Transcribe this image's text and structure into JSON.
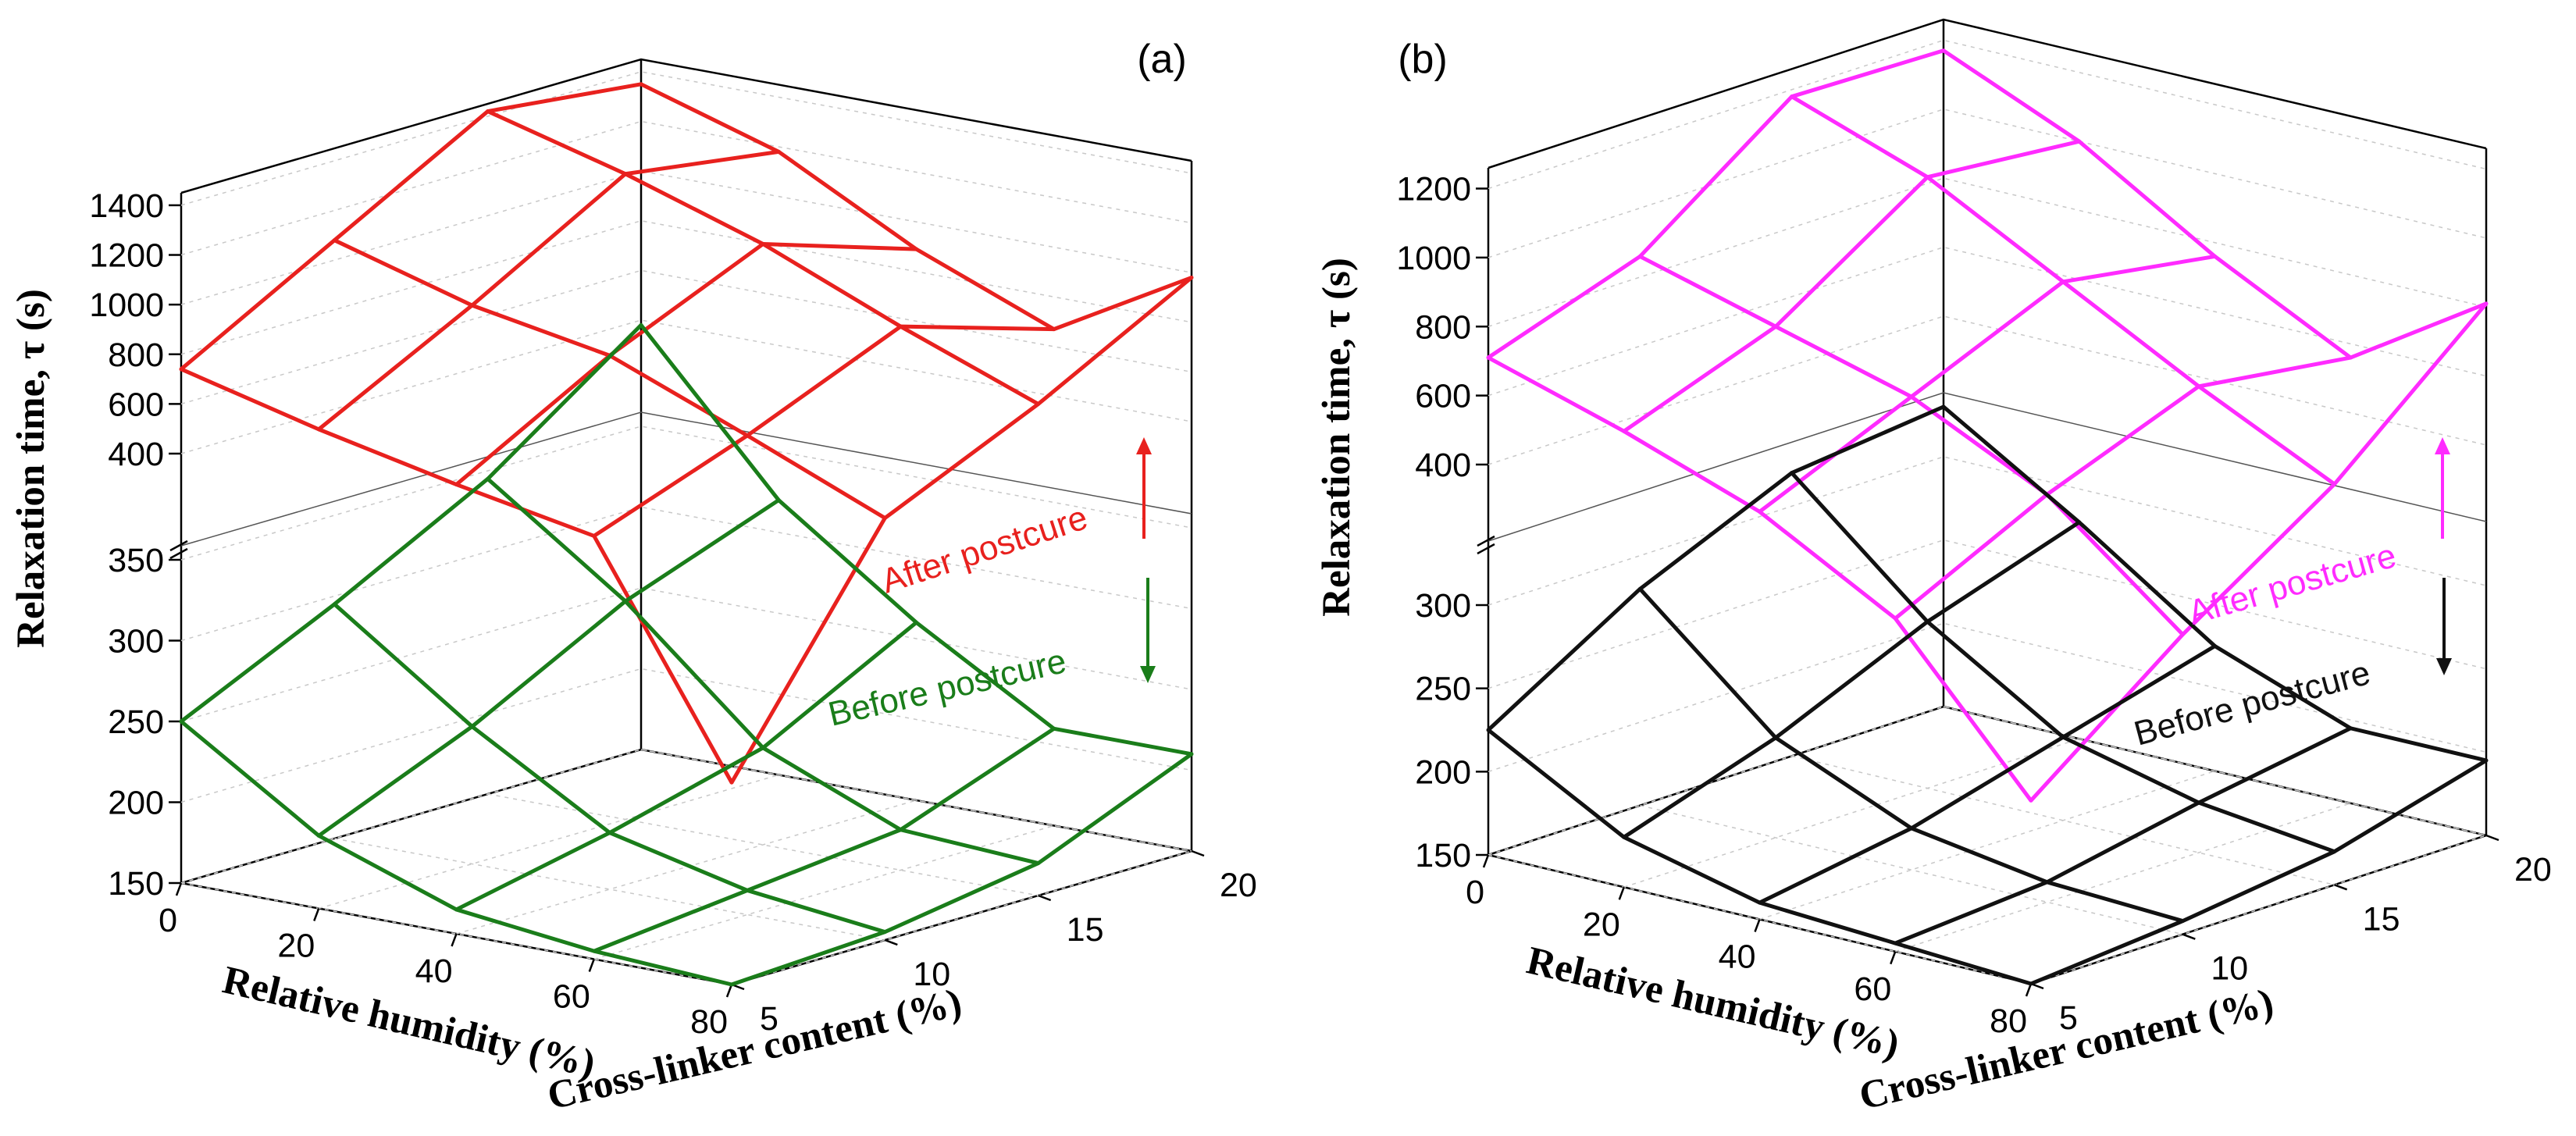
{
  "chart_data": [
    {
      "type": "surface3d",
      "panel_label": "(a)",
      "x_label": "Relative humidity (%)",
      "y_label": "Cross-linker content (%)",
      "z_label": "Relaxation time, τ (s)",
      "humidity": [
        0,
        20,
        40,
        60,
        80
      ],
      "crosslinker": [
        5,
        10,
        15,
        20
      ],
      "x_ticks": [
        "0",
        "20",
        "40",
        "60",
        "80"
      ],
      "y_ticks": [
        "5",
        "10",
        "15",
        "20"
      ],
      "z_ticks_lower": [
        "150",
        "200",
        "250",
        "300",
        "350"
      ],
      "z_ticks_upper": [
        "400",
        "600",
        "800",
        "1000",
        "1200",
        "1400"
      ],
      "z_break": "axis break between 350 and 400",
      "series": [
        {
          "name": "After postcure",
          "color": "#e8211e",
          "arrow": "up",
          "values": [
            [
              740,
              1080,
              1420,
              1350
            ],
            [
              600,
              920,
              1270,
              1180
            ],
            [
              480,
              820,
              1090,
              890
            ],
            [
              375,
              600,
              860,
              670
            ],
            [
              275,
              370,
              650,
              980
            ]
          ]
        },
        {
          "name": "Before postcure",
          "color": "#1a7d1a",
          "arrow": "down",
          "values": [
            [
              250,
              295,
              345,
              380
            ],
            [
              195,
              235,
              285,
              320
            ],
            [
              165,
              185,
              210,
              260
            ],
            [
              155,
              165,
              175,
              210
            ],
            [
              150,
              155,
              170,
              210
            ]
          ]
        }
      ]
    },
    {
      "type": "surface3d",
      "panel_label": "(b)",
      "x_label": "Relative humidity (%)",
      "y_label": "Cross-linker content (%)",
      "z_label": "Relaxation time, τ (s)",
      "humidity": [
        0,
        20,
        40,
        60,
        80
      ],
      "crosslinker": [
        5,
        10,
        15,
        20
      ],
      "x_ticks": [
        "0",
        "20",
        "40",
        "60",
        "80"
      ],
      "y_ticks": [
        "5",
        "10",
        "15",
        "20"
      ],
      "z_ticks_lower": [
        "150",
        "200",
        "250",
        "300"
      ],
      "z_ticks_upper": [
        "400",
        "600",
        "800",
        "1000",
        "1200"
      ],
      "z_break": "axis break between 300 and 400",
      "series": [
        {
          "name": "After postcure",
          "color": "#ff2bff",
          "arrow": "up",
          "values": [
            [
              710,
              860,
              1180,
              1170
            ],
            [
              590,
              750,
              1040,
              1000
            ],
            [
              450,
              640,
              830,
              760
            ],
            [
              350,
              450,
              620,
              560
            ],
            [
              260,
              330,
              430,
              810
            ]
          ]
        },
        {
          "name": "Before postcure",
          "color": "#111111",
          "arrow": "down",
          "values": [
            [
              225,
              280,
              320,
              330
            ],
            [
              180,
              210,
              250,
              280
            ],
            [
              160,
              175,
              200,
              225
            ],
            [
              155,
              162,
              180,
              195
            ],
            [
              150,
              158,
              170,
              195
            ]
          ]
        }
      ]
    }
  ]
}
